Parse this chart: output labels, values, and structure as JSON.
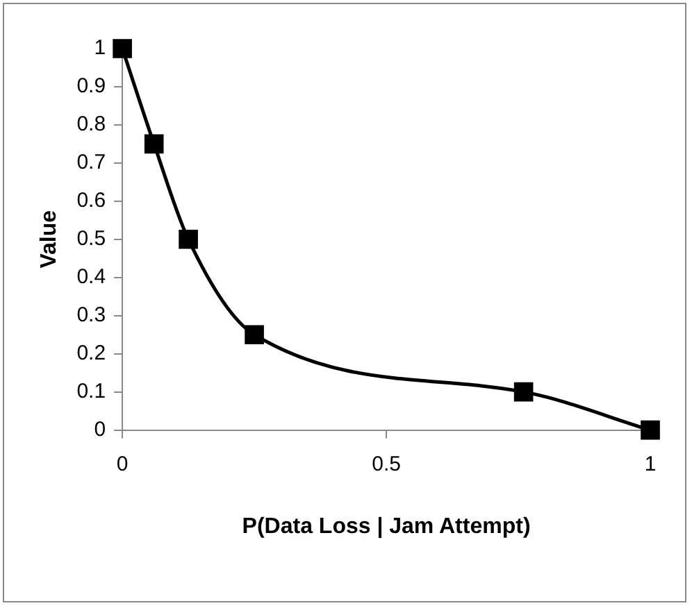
{
  "chart_data": {
    "type": "line",
    "xlabel": "P(Data Loss | Jam Attempt)",
    "ylabel": "Value",
    "x": [
      0,
      0.06,
      0.125,
      0.25,
      0.76,
      1
    ],
    "series": [
      {
        "color": "#000000",
        "values": [
          1,
          0.75,
          0.5,
          0.25,
          0.1,
          0
        ]
      }
    ],
    "xlim": [
      0,
      1
    ],
    "xticks": [
      0,
      0.5,
      1
    ],
    "ylim": [
      0,
      1
    ],
    "yticks": [
      0,
      0.1,
      0.2,
      0.3,
      0.4,
      0.5,
      0.6,
      0.7,
      0.8,
      0.9,
      1
    ],
    "grid": false,
    "legend": false,
    "marker": "square",
    "line_style": "solid"
  }
}
